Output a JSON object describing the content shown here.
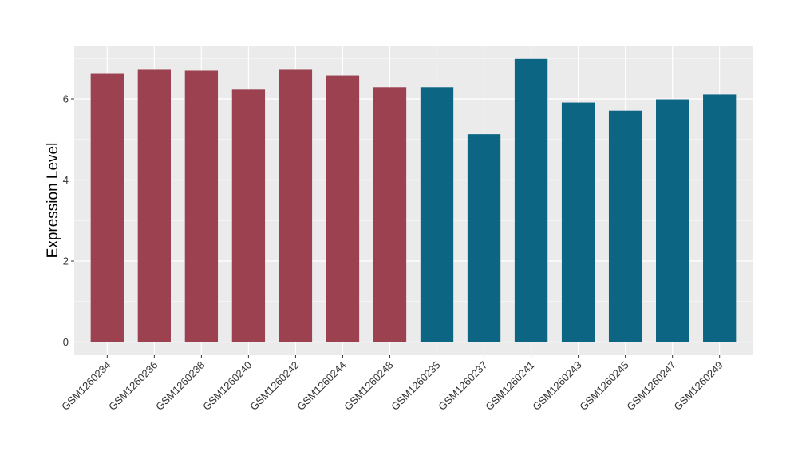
{
  "chart_data": {
    "type": "bar",
    "title": "",
    "xlabel": "",
    "ylabel": "Expression Level",
    "ylim": [
      0,
      7.25
    ],
    "yticks": [
      0,
      2,
      4,
      6
    ],
    "grid": true,
    "legend": "none",
    "categories": [
      "GSM1260234",
      "GSM1260236",
      "GSM1260238",
      "GSM1260240",
      "GSM1260242",
      "GSM1260244",
      "GSM1260248",
      "GSM1260235",
      "GSM1260237",
      "GSM1260241",
      "GSM1260243",
      "GSM1260245",
      "GSM1260247",
      "GSM1260249"
    ],
    "values": [
      6.62,
      6.72,
      6.7,
      6.23,
      6.72,
      6.58,
      6.29,
      6.29,
      5.13,
      6.99,
      5.91,
      5.71,
      5.99,
      6.11
    ],
    "group_colors": {
      "group_1": "#9b4150",
      "group_2": "#0d6584"
    },
    "bar_groups": [
      "group_1",
      "group_1",
      "group_1",
      "group_1",
      "group_1",
      "group_1",
      "group_1",
      "group_2",
      "group_2",
      "group_2",
      "group_2",
      "group_2",
      "group_2",
      "group_2"
    ],
    "panel_background": "#ebebeb",
    "grid_color": "#ffffff"
  }
}
